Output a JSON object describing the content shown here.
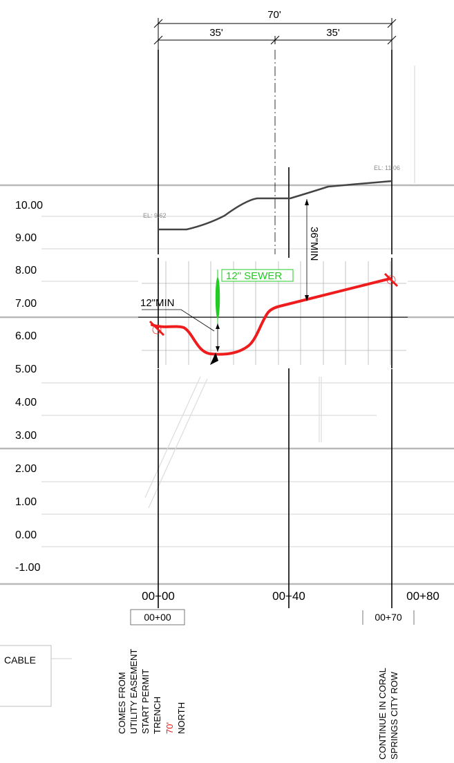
{
  "dimensions": {
    "total": "70'",
    "left_half": "35'",
    "right_half": "35'"
  },
  "elevation_labels": [
    "10.00",
    "9.00",
    "8.00",
    "7.00",
    "6.00",
    "5.00",
    "4.00",
    "3.00",
    "2.00",
    "1.00",
    "0.00",
    "-1.00"
  ],
  "station_labels": [
    "00+00",
    "00+40",
    "00+80"
  ],
  "station_boxes": [
    "00+00",
    "00+70"
  ],
  "ground_elevations": {
    "start": "EL: 9.62",
    "end": "EL: 11.06"
  },
  "annotations": {
    "sewer": "12\" SEWER",
    "min_clearance": "12\"MIN",
    "cover_depth": "36\"MIN"
  },
  "start_note": [
    "COMES FROM",
    "UTILITY EASEMENT",
    "START PERMIT",
    "TRENCH",
    "70'",
    "NORTH"
  ],
  "end_note": [
    "CONTINUE IN CORAL",
    "SPRINGS CITY ROW"
  ],
  "legend": {
    "label": "CABLE"
  },
  "colors": {
    "conduit": "#ee1c1c",
    "sewer": "#22cc22",
    "highlight": "#ee1c1c",
    "grid": "#9a9a9a",
    "ghost": "#d4d4d4"
  }
}
